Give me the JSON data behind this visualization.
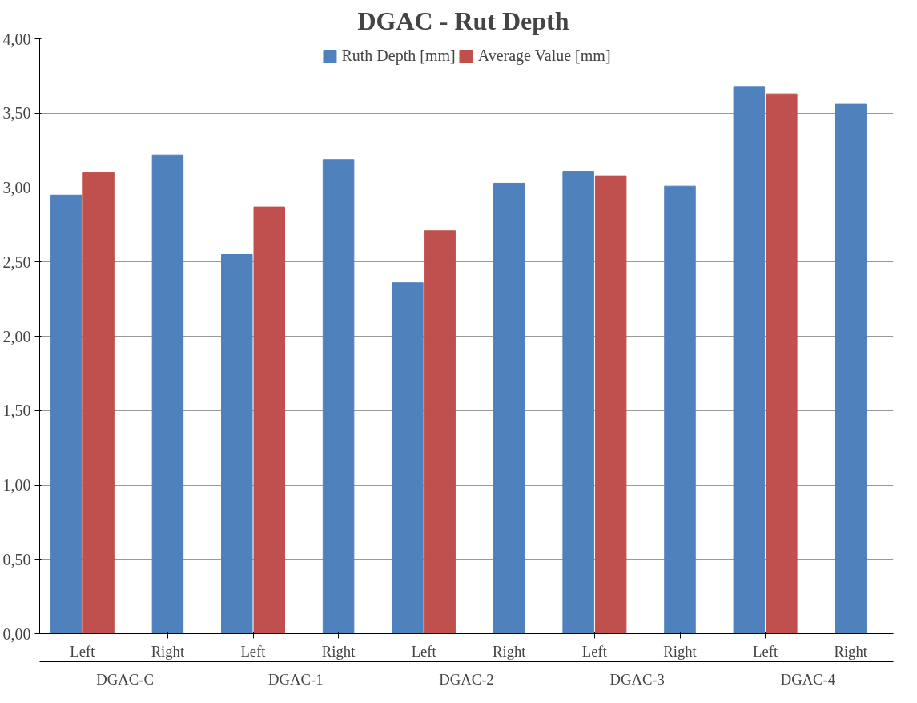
{
  "chart_data": {
    "type": "bar",
    "title": "DGAC -  Rut Depth",
    "categories": [
      "Left",
      "Right",
      "Left",
      "Right",
      "Left",
      "Right",
      "Left",
      "Right",
      "Left",
      "Right"
    ],
    "series": [
      {
        "name": "Ruth Depth [mm]",
        "color": "#4f81bd",
        "values": [
          2.95,
          3.22,
          2.55,
          3.19,
          2.36,
          3.03,
          3.11,
          3.01,
          3.68,
          3.56
        ]
      },
      {
        "name": "Average Value [mm]",
        "color": "#c0504d",
        "values": [
          3.1,
          null,
          2.87,
          null,
          2.71,
          null,
          3.08,
          null,
          3.63,
          null
        ]
      }
    ],
    "annotations": [
      "DGAC-C",
      "DGAC-1",
      "DGAC-2",
      "DGAC-3",
      "DGAC-4"
    ],
    "ylim": [
      0,
      4
    ],
    "yticks": [
      {
        "value": 0,
        "label": "0,00"
      },
      {
        "value": 0.5,
        "label": "0,50"
      },
      {
        "value": 1,
        "label": "1,00"
      },
      {
        "value": 1.5,
        "label": "1,50"
      },
      {
        "value": 2,
        "label": "2,00"
      },
      {
        "value": 2.5,
        "label": "2,50"
      },
      {
        "value": 3,
        "label": "3,00"
      },
      {
        "value": 3.5,
        "label": "3,50"
      },
      {
        "value": 4,
        "label": "4,00"
      }
    ],
    "grid": "y",
    "legend": "top"
  }
}
